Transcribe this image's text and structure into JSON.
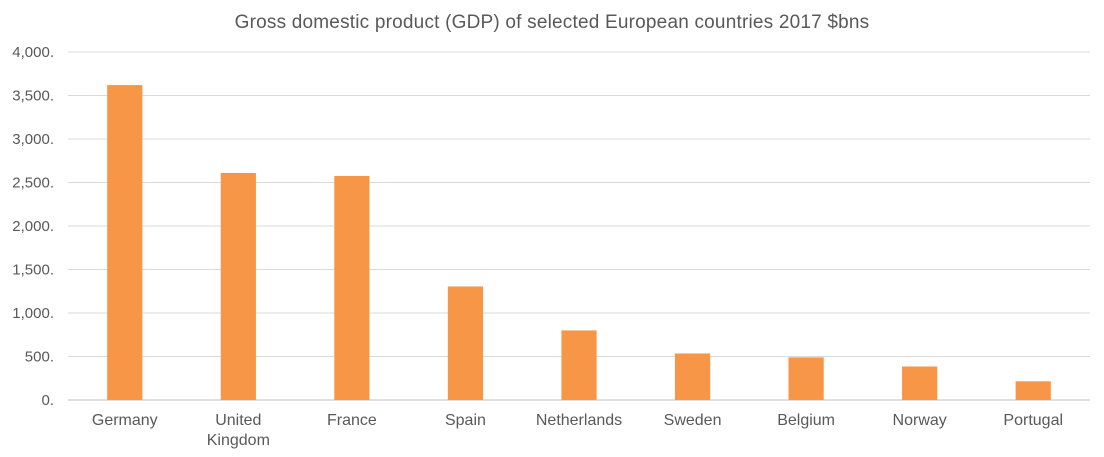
{
  "chart_data": {
    "type": "bar",
    "title": "Gross domestic product (GDP) of selected European countries 2017 $bns",
    "categories": [
      [
        "Germany"
      ],
      [
        "United",
        "Kingdom"
      ],
      [
        "France"
      ],
      [
        "Spain"
      ],
      [
        "Netherlands"
      ],
      [
        "Sweden"
      ],
      [
        "Belgium"
      ],
      [
        "Norway"
      ],
      [
        "Portugal"
      ]
    ],
    "values": [
      3620,
      2610,
      2575,
      1305,
      800,
      535,
      490,
      385,
      215
    ],
    "yticks": [
      "0.",
      "500.",
      "1,000.",
      "1,500.",
      "2,000.",
      "2,500.",
      "3,000.",
      "3,500.",
      "4,000."
    ],
    "ylim": [
      0,
      4000
    ],
    "grid": true,
    "colors": {
      "bar": "#F79646",
      "grid": "#D9D9D9",
      "axis": "#BFBFBF"
    }
  }
}
